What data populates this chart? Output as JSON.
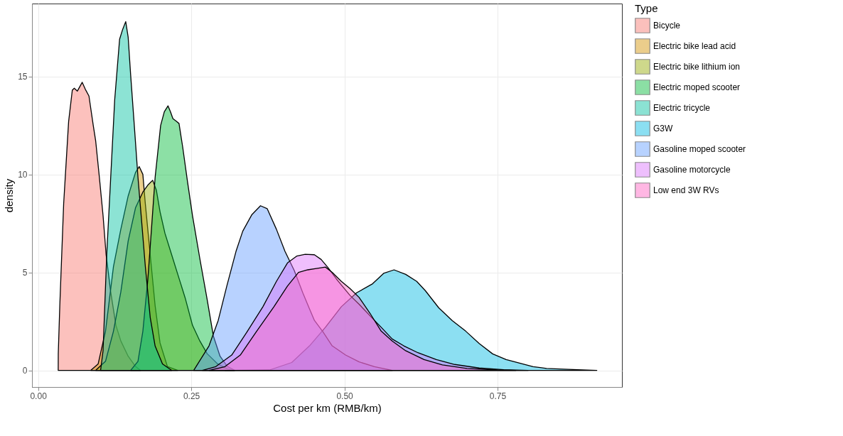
{
  "chart_data": {
    "type": "area",
    "xlabel": "Cost per km (RMB/km)",
    "ylabel": "density",
    "legend_title": "Type",
    "legend": "right",
    "grid": true,
    "xlim": [
      -0.01,
      0.953
    ],
    "ylim": [
      -0.85,
      18.72
    ],
    "xticks": [
      {
        "value": 0,
        "label": "0.00"
      },
      0.25,
      {
        "value": 0.5,
        "label": "0.50"
      },
      0.75
    ],
    "yticks": [
      0,
      5,
      10,
      15
    ],
    "series": [
      {
        "name": "Bicycle",
        "color": "#f8766d",
        "x": [
          0.0328,
          0.0329,
          0.0354,
          0.0417,
          0.0498,
          0.0558,
          0.059,
          0.064,
          0.072,
          0.077,
          0.083,
          0.09,
          0.094,
          0.1,
          0.106,
          0.111,
          0.1185,
          0.127,
          0.135,
          0.147,
          0.159,
          0.167
        ],
        "values": [
          0,
          0.85,
          3.3,
          8.5,
          12.7,
          14.3,
          14.4,
          14.25,
          14.7,
          14.35,
          14.0,
          12.5,
          11.7,
          9.85,
          7.9,
          5.9,
          4.0,
          2.3,
          1.5,
          0.72,
          0.2,
          0
        ]
      },
      {
        "name": "Electric bike lead acid",
        "color": "#d39200",
        "x": [
          0.086,
          0.098,
          0.11,
          0.123,
          0.135,
          0.147,
          0.159,
          0.165,
          0.171,
          0.175,
          0.183,
          0.191,
          0.199,
          0.211,
          0.228
        ],
        "values": [
          0,
          0.33,
          2.0,
          5.3,
          7.2,
          8.9,
          10.1,
          10.4,
          10.0,
          8.5,
          5.9,
          3.3,
          1.4,
          0.2,
          0
        ]
      },
      {
        "name": "Electric bike lithium ion",
        "color": "#93aa00",
        "x": [
          0.094,
          0.11,
          0.123,
          0.135,
          0.147,
          0.159,
          0.171,
          0.179,
          0.187,
          0.193,
          0.199,
          0.207,
          0.218,
          0.228,
          0.24,
          0.252,
          0.264,
          0.276,
          0.293,
          0.309,
          0.32
        ],
        "values": [
          0,
          0.46,
          2.0,
          4.0,
          6.6,
          8.3,
          9.1,
          9.45,
          9.7,
          9.2,
          8.1,
          7.0,
          5.9,
          4.9,
          3.7,
          2.3,
          1.5,
          0.85,
          0.33,
          0.07,
          0
        ]
      },
      {
        "name": "Electric moped scooter",
        "color": "#00ba38",
        "x": [
          0.151,
          0.163,
          0.171,
          0.179,
          0.185,
          0.191,
          0.2,
          0.206,
          0.212,
          0.216,
          0.22,
          0.226,
          0.23,
          0.236,
          0.244,
          0.252,
          0.264,
          0.276,
          0.286,
          0.297,
          0.309,
          0.321
        ],
        "values": [
          0,
          0.46,
          2.0,
          4.6,
          7.2,
          9.85,
          12.5,
          13.2,
          13.5,
          13.2,
          12.85,
          12.7,
          12.6,
          11.4,
          9.6,
          7.9,
          5.7,
          3.6,
          1.76,
          0.72,
          0.2,
          0
        ]
      },
      {
        "name": "Electric tricycle",
        "color": "#00c19f",
        "x": [
          0.102,
          0.106,
          0.112,
          0.1185,
          0.125,
          0.133,
          0.138,
          0.143,
          0.147,
          0.151,
          0.157,
          0.163,
          0.169,
          0.175,
          0.183,
          0.191,
          0.203,
          0.218
        ],
        "values": [
          0,
          1.0,
          5.9,
          9.85,
          13.8,
          16.9,
          17.4,
          17.8,
          17.0,
          15.1,
          12.5,
          9.85,
          7.6,
          5.3,
          2.7,
          1.24,
          0.33,
          0
        ]
      },
      {
        "name": "G3W",
        "color": "#00b9e3",
        "x": [
          0.305,
          0.378,
          0.414,
          0.443,
          0.469,
          0.495,
          0.52,
          0.546,
          0.564,
          0.581,
          0.6,
          0.618,
          0.632,
          0.654,
          0.676,
          0.698,
          0.72,
          0.742,
          0.764,
          0.786,
          0.808,
          0.83,
          0.873,
          0.912
        ],
        "values": [
          0,
          0.02,
          0.4,
          1.25,
          2.2,
          3.25,
          3.96,
          4.42,
          4.95,
          5.13,
          4.9,
          4.54,
          4.07,
          3.19,
          2.54,
          2.0,
          1.37,
          0.84,
          0.55,
          0.37,
          0.19,
          0.1,
          0.04,
          0
        ]
      },
      {
        "name": "Gasoline moped scooter",
        "color": "#619cff",
        "x": [
          0.254,
          0.279,
          0.294,
          0.308,
          0.323,
          0.334,
          0.349,
          0.363,
          0.374,
          0.389,
          0.403,
          0.418,
          0.432,
          0.443,
          0.451,
          0.465,
          0.48,
          0.502,
          0.524,
          0.549,
          0.578
        ],
        "values": [
          0,
          1.25,
          2.55,
          4.3,
          6.07,
          7.1,
          7.95,
          8.4,
          8.25,
          7.2,
          6.07,
          5.1,
          3.96,
          3.14,
          2.55,
          1.96,
          1.25,
          0.78,
          0.43,
          0.19,
          0
        ]
      },
      {
        "name": "Gasoline motorcycle",
        "color": "#db72fb",
        "x": [
          0.268,
          0.29,
          0.316,
          0.341,
          0.367,
          0.389,
          0.407,
          0.422,
          0.436,
          0.451,
          0.462,
          0.473,
          0.487,
          0.509,
          0.524,
          0.542,
          0.56,
          0.578,
          0.597,
          0.62,
          0.65,
          0.68,
          0.72,
          0.76,
          0.8
        ],
        "values": [
          0,
          0.19,
          0.78,
          1.96,
          3.25,
          4.54,
          5.48,
          5.83,
          5.92,
          5.9,
          5.66,
          5.25,
          4.66,
          3.83,
          3.37,
          2.78,
          2.2,
          1.6,
          1.25,
          0.9,
          0.55,
          0.3,
          0.12,
          0.03,
          0
        ]
      },
      {
        "name": "Low end 3W RVs",
        "color": "#ff61c3",
        "x": [
          0.279,
          0.305,
          0.33,
          0.356,
          0.385,
          0.407,
          0.425,
          0.44,
          0.454,
          0.469,
          0.48,
          0.495,
          0.509,
          0.524,
          0.542,
          0.56,
          0.578,
          0.6,
          0.63,
          0.66,
          0.7,
          0.75,
          0.78
        ],
        "values": [
          0,
          0.19,
          0.78,
          1.96,
          3.25,
          4.3,
          5.0,
          5.13,
          5.2,
          5.27,
          5.0,
          4.54,
          4.18,
          3.72,
          2.9,
          2.0,
          1.5,
          1.0,
          0.55,
          0.28,
          0.1,
          0.02,
          0
        ]
      }
    ]
  }
}
